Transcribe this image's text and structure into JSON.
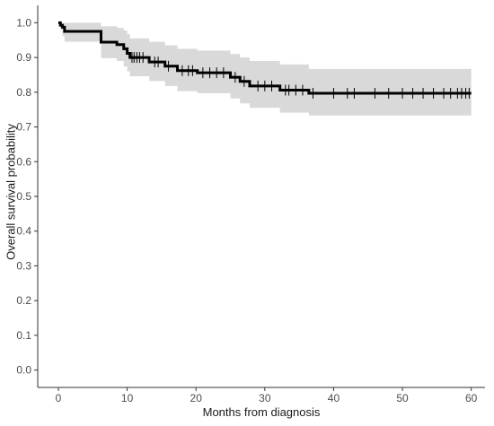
{
  "chart_data": {
    "type": "line",
    "title": "",
    "xlabel": "Months from diagnosis",
    "ylabel": "Overall survival probability",
    "xlim": [
      -3,
      62
    ],
    "ylim": [
      -0.05,
      1.05
    ],
    "x_ticks": [
      0,
      10,
      20,
      30,
      40,
      50,
      60
    ],
    "y_ticks": [
      0.0,
      0.1,
      0.2,
      0.3,
      0.4,
      0.5,
      0.6,
      0.7,
      0.8,
      0.9,
      1.0
    ],
    "y_tick_labels": [
      "0.0",
      "0.1",
      "0.2",
      "0.3",
      "0.4",
      "0.5",
      "0.6",
      "0.7",
      "0.8",
      "0.9",
      "1.0"
    ],
    "x_tick_labels": [
      "0",
      "10",
      "20",
      "30",
      "40",
      "50",
      "60"
    ],
    "grid": false,
    "series": [
      {
        "line_color": "#000000",
        "band_color": "#d9d9d9",
        "survival": [
          {
            "x": 0,
            "y": 1.0
          },
          {
            "x": 0.3,
            "y": 0.993
          },
          {
            "x": 0.6,
            "y": 0.987
          },
          {
            "x": 0.9,
            "y": 0.975
          },
          {
            "x": 6.2,
            "y": 0.944
          },
          {
            "x": 8.5,
            "y": 0.937
          },
          {
            "x": 9.5,
            "y": 0.925
          },
          {
            "x": 10.0,
            "y": 0.912
          },
          {
            "x": 10.4,
            "y": 0.9
          },
          {
            "x": 13.2,
            "y": 0.887
          },
          {
            "x": 15.5,
            "y": 0.875
          },
          {
            "x": 17.3,
            "y": 0.862
          },
          {
            "x": 20.2,
            "y": 0.856
          },
          {
            "x": 25.0,
            "y": 0.843
          },
          {
            "x": 26.4,
            "y": 0.831
          },
          {
            "x": 27.8,
            "y": 0.818
          },
          {
            "x": 32.2,
            "y": 0.806
          },
          {
            "x": 36.4,
            "y": 0.797
          },
          {
            "x": 60,
            "y": 0.797
          }
        ],
        "ci_upper": [
          {
            "x": 0,
            "y": 1.0
          },
          {
            "x": 0.9,
            "y": 1.0
          },
          {
            "x": 6.2,
            "y": 0.99
          },
          {
            "x": 8.5,
            "y": 0.985
          },
          {
            "x": 9.5,
            "y": 0.978
          },
          {
            "x": 10.0,
            "y": 0.967
          },
          {
            "x": 10.4,
            "y": 0.955
          },
          {
            "x": 13.2,
            "y": 0.945
          },
          {
            "x": 15.5,
            "y": 0.935
          },
          {
            "x": 17.3,
            "y": 0.925
          },
          {
            "x": 20.2,
            "y": 0.92
          },
          {
            "x": 25.0,
            "y": 0.91
          },
          {
            "x": 26.4,
            "y": 0.9
          },
          {
            "x": 27.8,
            "y": 0.89
          },
          {
            "x": 32.2,
            "y": 0.88
          },
          {
            "x": 36.4,
            "y": 0.867
          },
          {
            "x": 60,
            "y": 0.867
          }
        ],
        "ci_lower": [
          {
            "x": 0,
            "y": 1.0
          },
          {
            "x": 0.3,
            "y": 0.98
          },
          {
            "x": 0.6,
            "y": 0.962
          },
          {
            "x": 0.9,
            "y": 0.945
          },
          {
            "x": 6.2,
            "y": 0.898
          },
          {
            "x": 8.5,
            "y": 0.89
          },
          {
            "x": 9.5,
            "y": 0.874
          },
          {
            "x": 10.0,
            "y": 0.86
          },
          {
            "x": 10.4,
            "y": 0.846
          },
          {
            "x": 13.2,
            "y": 0.832
          },
          {
            "x": 15.5,
            "y": 0.818
          },
          {
            "x": 17.3,
            "y": 0.803
          },
          {
            "x": 20.2,
            "y": 0.797
          },
          {
            "x": 25.0,
            "y": 0.782
          },
          {
            "x": 26.4,
            "y": 0.768
          },
          {
            "x": 27.8,
            "y": 0.755
          },
          {
            "x": 32.2,
            "y": 0.741
          },
          {
            "x": 36.4,
            "y": 0.733
          },
          {
            "x": 60,
            "y": 0.733
          }
        ],
        "censor_x": [
          10.7,
          11.0,
          11.4,
          11.8,
          12.3,
          14.0,
          14.5,
          16.0,
          18.0,
          18.9,
          19.5,
          21.0,
          22.0,
          23.0,
          24.0,
          25.7,
          27.0,
          29.0,
          30.0,
          31.0,
          33.0,
          33.5,
          34.5,
          35.5,
          37.0,
          40.0,
          42.0,
          43.0,
          46.0,
          48.0,
          50.0,
          51.5,
          53.0,
          54.5,
          56.0,
          57.0,
          58.0,
          58.6,
          59.2,
          59.7
        ]
      }
    ]
  }
}
